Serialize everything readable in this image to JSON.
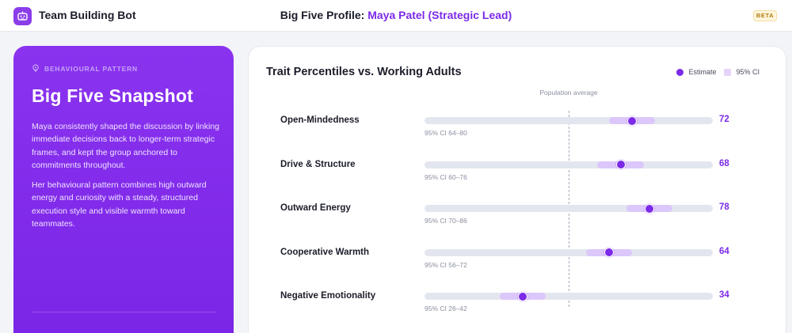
{
  "app": {
    "name": "Team Building Bot",
    "badge": "BETA"
  },
  "header": {
    "title_prefix": "Big Five Profile: ",
    "person": "Maya Patel (Strategic Lead)"
  },
  "snapshot": {
    "eyebrow": "BEHAVIOURAL PATTERN",
    "title": "Big Five Snapshot",
    "paragraphs": [
      "Maya consistently shaped the discussion by linking immediate decisions back to longer-term strategic frames, and kept the group anchored to commitments throughout.",
      "Her behavioural pattern combines high outward energy and curiosity with a steady, structured execution style and visible warmth toward teammates."
    ]
  },
  "panel": {
    "title": "Trait Percentiles vs. Working Adults",
    "legend": {
      "estimate": "Estimate",
      "ci": "95% CI"
    },
    "population_label": "Population average",
    "population_average": 50
  },
  "colors": {
    "accent": "#7c2ae8",
    "ci_fill": "#dcc7fa",
    "track": "#e3e6ee",
    "card": "#8a33ef"
  },
  "chart_data": {
    "type": "bar",
    "title": "Trait Percentiles vs. Working Adults",
    "xlim": [
      0,
      100
    ],
    "reference_line": {
      "label": "Population average",
      "value": 50
    },
    "traits": [
      {
        "name": "Open-Mindedness",
        "estimate": 72,
        "ci_low": 64,
        "ci_high": 80,
        "ci_label": "95% CI 64–80",
        "score_text": "72"
      },
      {
        "name": "Drive & Structure",
        "estimate": 68,
        "ci_low": 60,
        "ci_high": 76,
        "ci_label": "95% CI 60–76",
        "score_text": "68"
      },
      {
        "name": "Outward Energy",
        "estimate": 78,
        "ci_low": 70,
        "ci_high": 86,
        "ci_label": "95% CI 70–86",
        "score_text": "78"
      },
      {
        "name": "Cooperative Warmth",
        "estimate": 64,
        "ci_low": 56,
        "ci_high": 72,
        "ci_label": "95% CI 56–72",
        "score_text": "64"
      },
      {
        "name": "Negative Emotionality",
        "estimate": 34,
        "ci_low": 26,
        "ci_high": 42,
        "ci_label": "95% CI 26–42",
        "score_text": "34"
      }
    ]
  }
}
